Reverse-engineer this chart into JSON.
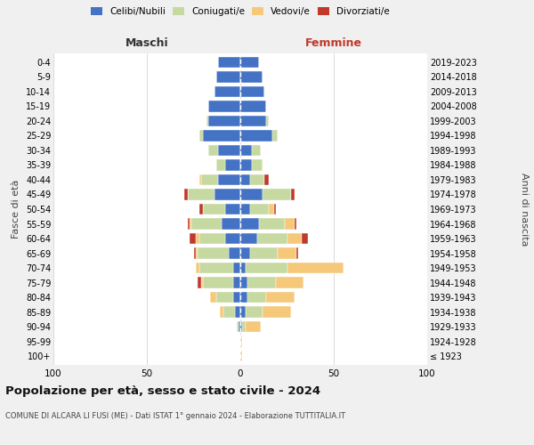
{
  "age_groups": [
    "100+",
    "95-99",
    "90-94",
    "85-89",
    "80-84",
    "75-79",
    "70-74",
    "65-69",
    "60-64",
    "55-59",
    "50-54",
    "45-49",
    "40-44",
    "35-39",
    "30-34",
    "25-29",
    "20-24",
    "15-19",
    "10-14",
    "5-9",
    "0-4"
  ],
  "birth_years": [
    "≤ 1923",
    "1924-1928",
    "1929-1933",
    "1934-1938",
    "1939-1943",
    "1944-1948",
    "1949-1953",
    "1954-1958",
    "1959-1963",
    "1964-1968",
    "1969-1973",
    "1974-1978",
    "1979-1983",
    "1984-1988",
    "1989-1993",
    "1994-1998",
    "1999-2003",
    "2004-2008",
    "2009-2013",
    "2014-2018",
    "2019-2023"
  ],
  "colors": {
    "celibe": "#4472c4",
    "coniugato": "#c5d9a0",
    "vedovo": "#f5c87a",
    "divorziato": "#c0392b"
  },
  "maschi": {
    "celibe": [
      0,
      0,
      1,
      3,
      4,
      4,
      4,
      6,
      8,
      10,
      8,
      14,
      12,
      8,
      12,
      20,
      17,
      17,
      14,
      13,
      12
    ],
    "coniugato": [
      0,
      0,
      1,
      6,
      9,
      16,
      18,
      17,
      14,
      16,
      12,
      14,
      9,
      5,
      5,
      2,
      1,
      0,
      0,
      0,
      0
    ],
    "vedovo": [
      0,
      0,
      0,
      2,
      3,
      1,
      2,
      1,
      2,
      1,
      0,
      0,
      1,
      0,
      0,
      0,
      0,
      0,
      0,
      0,
      0
    ],
    "divorziato": [
      0,
      0,
      0,
      0,
      0,
      2,
      0,
      1,
      3,
      1,
      2,
      2,
      0,
      0,
      0,
      0,
      0,
      0,
      0,
      0,
      0
    ]
  },
  "femmine": {
    "celibe": [
      0,
      0,
      1,
      3,
      4,
      4,
      3,
      5,
      9,
      10,
      5,
      12,
      5,
      6,
      6,
      17,
      14,
      14,
      13,
      12,
      10
    ],
    "coniugato": [
      0,
      0,
      2,
      9,
      10,
      15,
      22,
      15,
      16,
      14,
      10,
      15,
      8,
      6,
      5,
      3,
      1,
      0,
      0,
      0,
      0
    ],
    "vedovo": [
      1,
      1,
      8,
      15,
      15,
      15,
      30,
      10,
      8,
      5,
      3,
      0,
      0,
      0,
      0,
      0,
      0,
      0,
      0,
      0,
      0
    ],
    "divorziato": [
      0,
      0,
      0,
      0,
      0,
      0,
      0,
      1,
      3,
      1,
      1,
      2,
      2,
      0,
      0,
      0,
      0,
      0,
      0,
      0,
      0
    ]
  },
  "title": "Popolazione per età, sesso e stato civile - 2024",
  "subtitle": "COMUNE DI ALCARA LI FUSI (ME) - Dati ISTAT 1° gennaio 2024 - Elaborazione TUTTITALIA.IT",
  "xlabel_left": "Maschi",
  "xlabel_right": "Femmine",
  "ylabel_left": "Fasce di età",
  "ylabel_right": "Anni di nascita",
  "xlim": 100,
  "bg_color": "#f0f0f0",
  "plot_bg_color": "#ffffff",
  "legend_labels": [
    "Celibi/Nubili",
    "Coniugati/e",
    "Vedovi/e",
    "Divorziati/e"
  ]
}
